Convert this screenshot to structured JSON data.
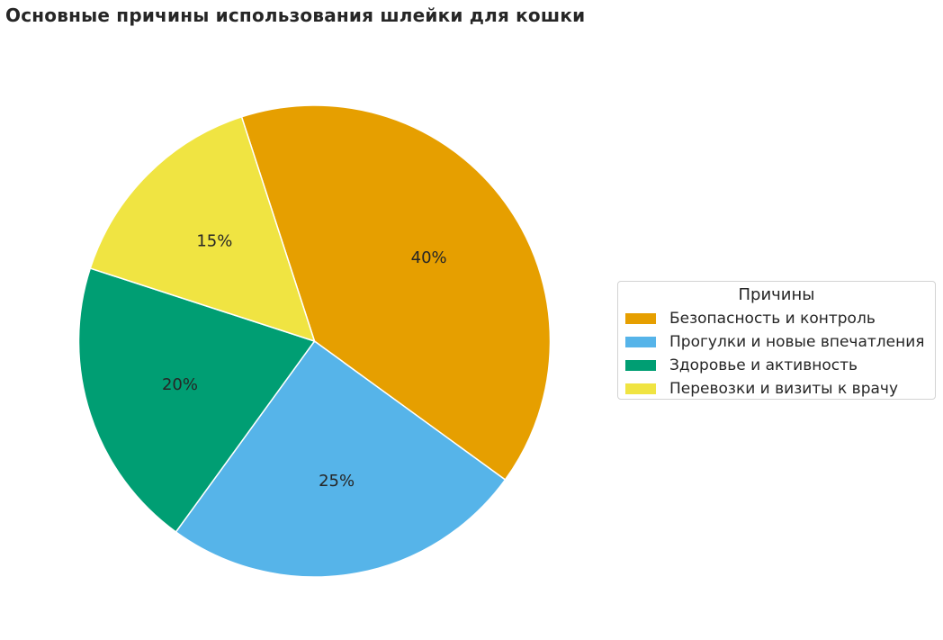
{
  "chart_data": {
    "type": "pie",
    "title": "Основные причины использования шлейки для кошки",
    "categories": [
      "Безопасность и контроль",
      "Прогулки и новые впечатления",
      "Здоровье и активность",
      "Перевозки и визиты к врачу"
    ],
    "values": [
      40,
      25,
      20,
      15
    ],
    "value_labels": [
      "40%",
      "25%",
      "20%",
      "15%"
    ],
    "colors": [
      "#E69F00",
      "#56B4E9",
      "#009E73",
      "#F0E442"
    ],
    "legend": {
      "title": "Причины",
      "placement": "right"
    }
  }
}
